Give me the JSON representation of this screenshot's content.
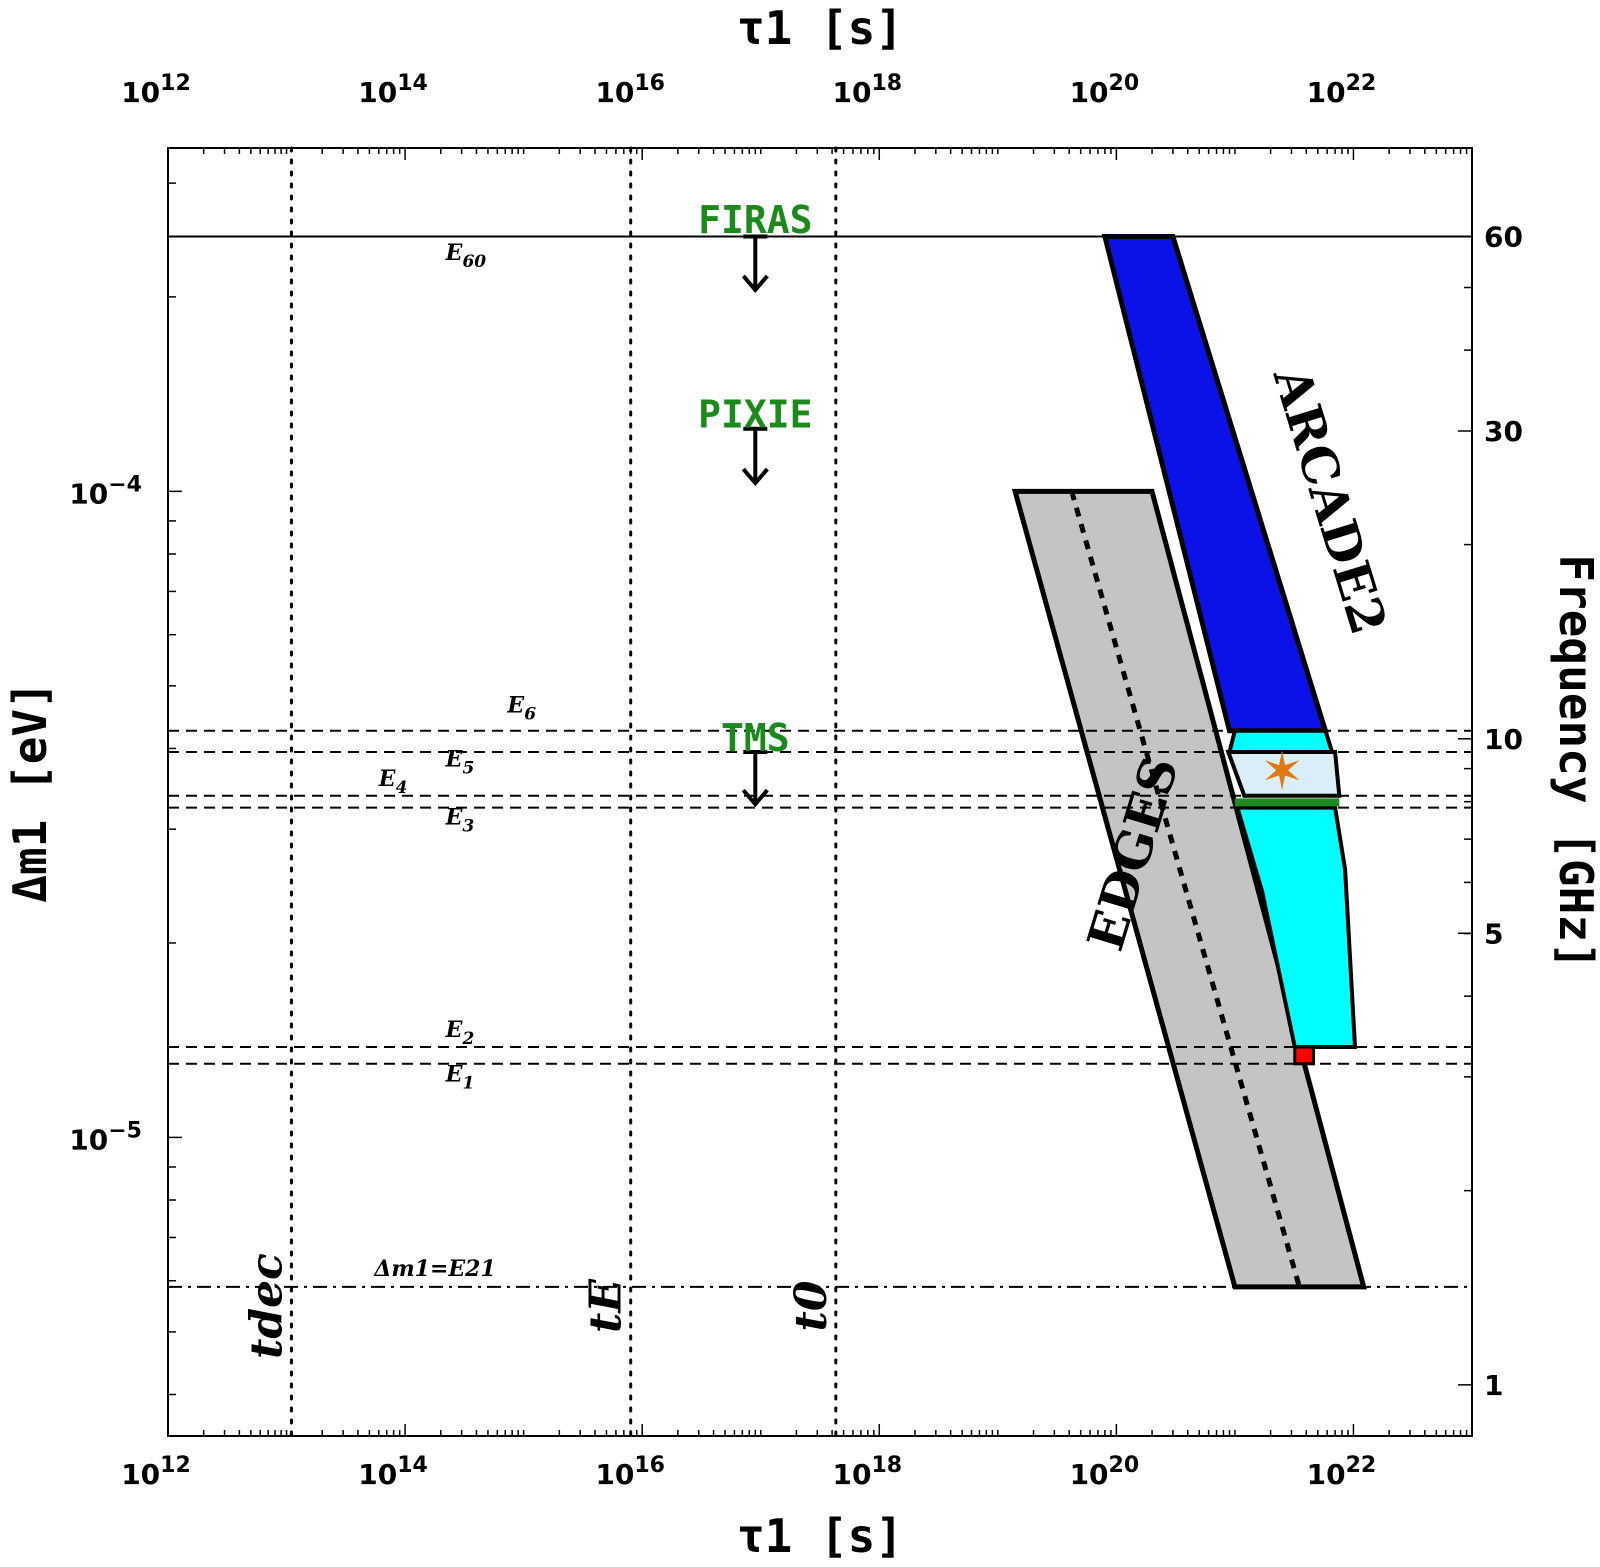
{
  "chart_data": {
    "type": "line",
    "axes": {
      "x_bottom_label": "τ1 [s]",
      "x_top_label": "τ1 [s]",
      "y_left_label": "Δm1 [eV]",
      "y_right_label": "Frequency [GHz]",
      "x_scale": "log",
      "y_scale": "log",
      "xlim": [
        1000000000000.0,
        1e+23
      ],
      "ylim": [
        3.45e-06,
        0.00034
      ],
      "x_ticks": [
        {
          "value": 1000000000000.0,
          "base": "10",
          "exp": "12"
        },
        {
          "value": 100000000000000.0,
          "base": "10",
          "exp": "14"
        },
        {
          "value": 1e+16,
          "base": "10",
          "exp": "16"
        },
        {
          "value": 1e+18,
          "base": "10",
          "exp": "18"
        },
        {
          "value": 1e+20,
          "base": "10",
          "exp": "20"
        },
        {
          "value": 1e+22,
          "base": "10",
          "exp": "22"
        }
      ],
      "y_ticks": [
        {
          "value": 0.0001,
          "base": "10",
          "exp": "−4"
        },
        {
          "value": 1e-05,
          "base": "10",
          "exp": "−5"
        }
      ],
      "right_ticks": [
        {
          "value": 0.000248,
          "label": "60"
        },
        {
          "value": 0.000124,
          "label": "30"
        },
        {
          "value": 4.14e-05,
          "label": "10"
        },
        {
          "value": 2.07e-05,
          "label": "5"
        },
        {
          "value": 4.14e-06,
          "label": "1"
        }
      ],
      "grid": false
    },
    "energy_lines": [
      {
        "name": "E60",
        "y": 0.000248,
        "style": "solid",
        "label_x": 220000000000000.0,
        "label_y": 0.000228
      },
      {
        "name": "E6",
        "y": 4.26e-05,
        "style": "dashed",
        "label_x": 730000000000000.0,
        "label_y": 4.55e-05
      },
      {
        "name": "E5",
        "y": 3.95e-05,
        "style": "dashed",
        "label_x": 220000000000000.0,
        "label_y": 3.75e-05
      },
      {
        "name": "E4",
        "y": 3.38e-05,
        "style": "dashed",
        "label_x": 60000000000000.0,
        "label_y": 3.5e-05
      },
      {
        "name": "E3",
        "y": 3.24e-05,
        "style": "dashed",
        "label_x": 220000000000000.0,
        "label_y": 3.05e-05
      },
      {
        "name": "E2",
        "y": 1.38e-05,
        "style": "dashed",
        "label_x": 220000000000000.0,
        "label_y": 1.43e-05
      },
      {
        "name": "E1",
        "y": 1.3e-05,
        "style": "dashed",
        "label_x": 220000000000000.0,
        "label_y": 1.22e-05
      },
      {
        "name": "Δm1=E21",
        "y": 5.87e-06,
        "style": "dashdot",
        "label_x": 55000000000000.0,
        "label_y": 6.1e-06
      }
    ],
    "time_lines": [
      {
        "name": "tdec",
        "x": 11000000000000.0
      },
      {
        "name": "tE",
        "x": 8000000000000000.0
      },
      {
        "name": "t0",
        "x": 4.3e+17
      }
    ],
    "upper_limits": [
      {
        "name": "FIRAS",
        "x": 9e+16,
        "y_top": 0.000248,
        "y_bottom": 0.000205,
        "label_y": 0.000262
      },
      {
        "name": "PIXIE",
        "x": 9e+16,
        "y_top": 0.000125,
        "y_bottom": 0.000103,
        "label_y": 0.000131
      },
      {
        "name": "TMS",
        "x": 9e+16,
        "y_top": 3.95e-05,
        "y_bottom": 3.28e-05,
        "label_y": 4.14e-05
      }
    ],
    "regions": [
      {
        "name": "ARCADE2",
        "color": "#0a12e8",
        "points": [
          [
            8e+19,
            0.000248
          ],
          [
            3e+20,
            0.000248
          ],
          [
            5.8e+21,
            4.26e-05
          ],
          [
            9e+20,
            4.26e-05
          ]
        ]
      },
      {
        "name": "EDGES",
        "color": "#c4c4c4",
        "points": [
          [
            1.4e+19,
            0.0001
          ],
          [
            2e+20,
            0.0001
          ],
          [
            1.22e+22,
            5.87e-06
          ],
          [
            1e+21,
            5.87e-06
          ]
        ]
      }
    ],
    "edges_center_line": [
      [
        4.2e+19,
        0.0001
      ],
      [
        3.5e+21,
        5.87e-06
      ]
    ],
    "arcade_sub_regions": {
      "upper": {
        "color": "#00ffff",
        "points": [
          [
            1e+21,
            4.26e-05
          ],
          [
            5.8e+21,
            4.26e-05
          ],
          [
            6.6e+21,
            3.95e-05
          ],
          [
            9e+20,
            3.95e-05
          ]
        ]
      },
      "light": {
        "color": "#daeef8",
        "points": [
          [
            8.8e+20,
            3.95e-05
          ],
          [
            7e+21,
            3.95e-05
          ],
          [
            7.6e+21,
            3.38e-05
          ],
          [
            1.2e+21,
            3.38e-05
          ]
        ]
      },
      "green_bar": {
        "color": "#1f8a1f",
        "x1": 1e+21,
        "x2": 7.6e+21,
        "y": 3.3e-05
      },
      "lower": {
        "color": "#00ffff",
        "points": [
          [
            1.05e+21,
            3.24e-05
          ],
          [
            7e+21,
            3.24e-05
          ],
          [
            8.5e+21,
            2.6e-05
          ],
          [
            1.03e+22,
            1.38e-05
          ],
          [
            3.2e+21,
            1.38e-05
          ],
          [
            1.7e+21,
            2.4e-05
          ]
        ]
      },
      "red_box": {
        "color": "#ff0000",
        "x1": 3.2e+21,
        "x2": 4.6e+21,
        "y1": 1.3e-05,
        "y2": 1.38e-05
      },
      "star": {
        "color": "#e07a10",
        "x": 2.5e+21,
        "y": 3.7e-05
      }
    },
    "region_labels": [
      {
        "name": "ARCADE2",
        "x": 4.6e+21,
        "y": 9.5e-05,
        "rotate": 73
      },
      {
        "name": "EDGES",
        "x": 1.9e+20,
        "y": 2.7e-05,
        "rotate": -73
      }
    ]
  }
}
